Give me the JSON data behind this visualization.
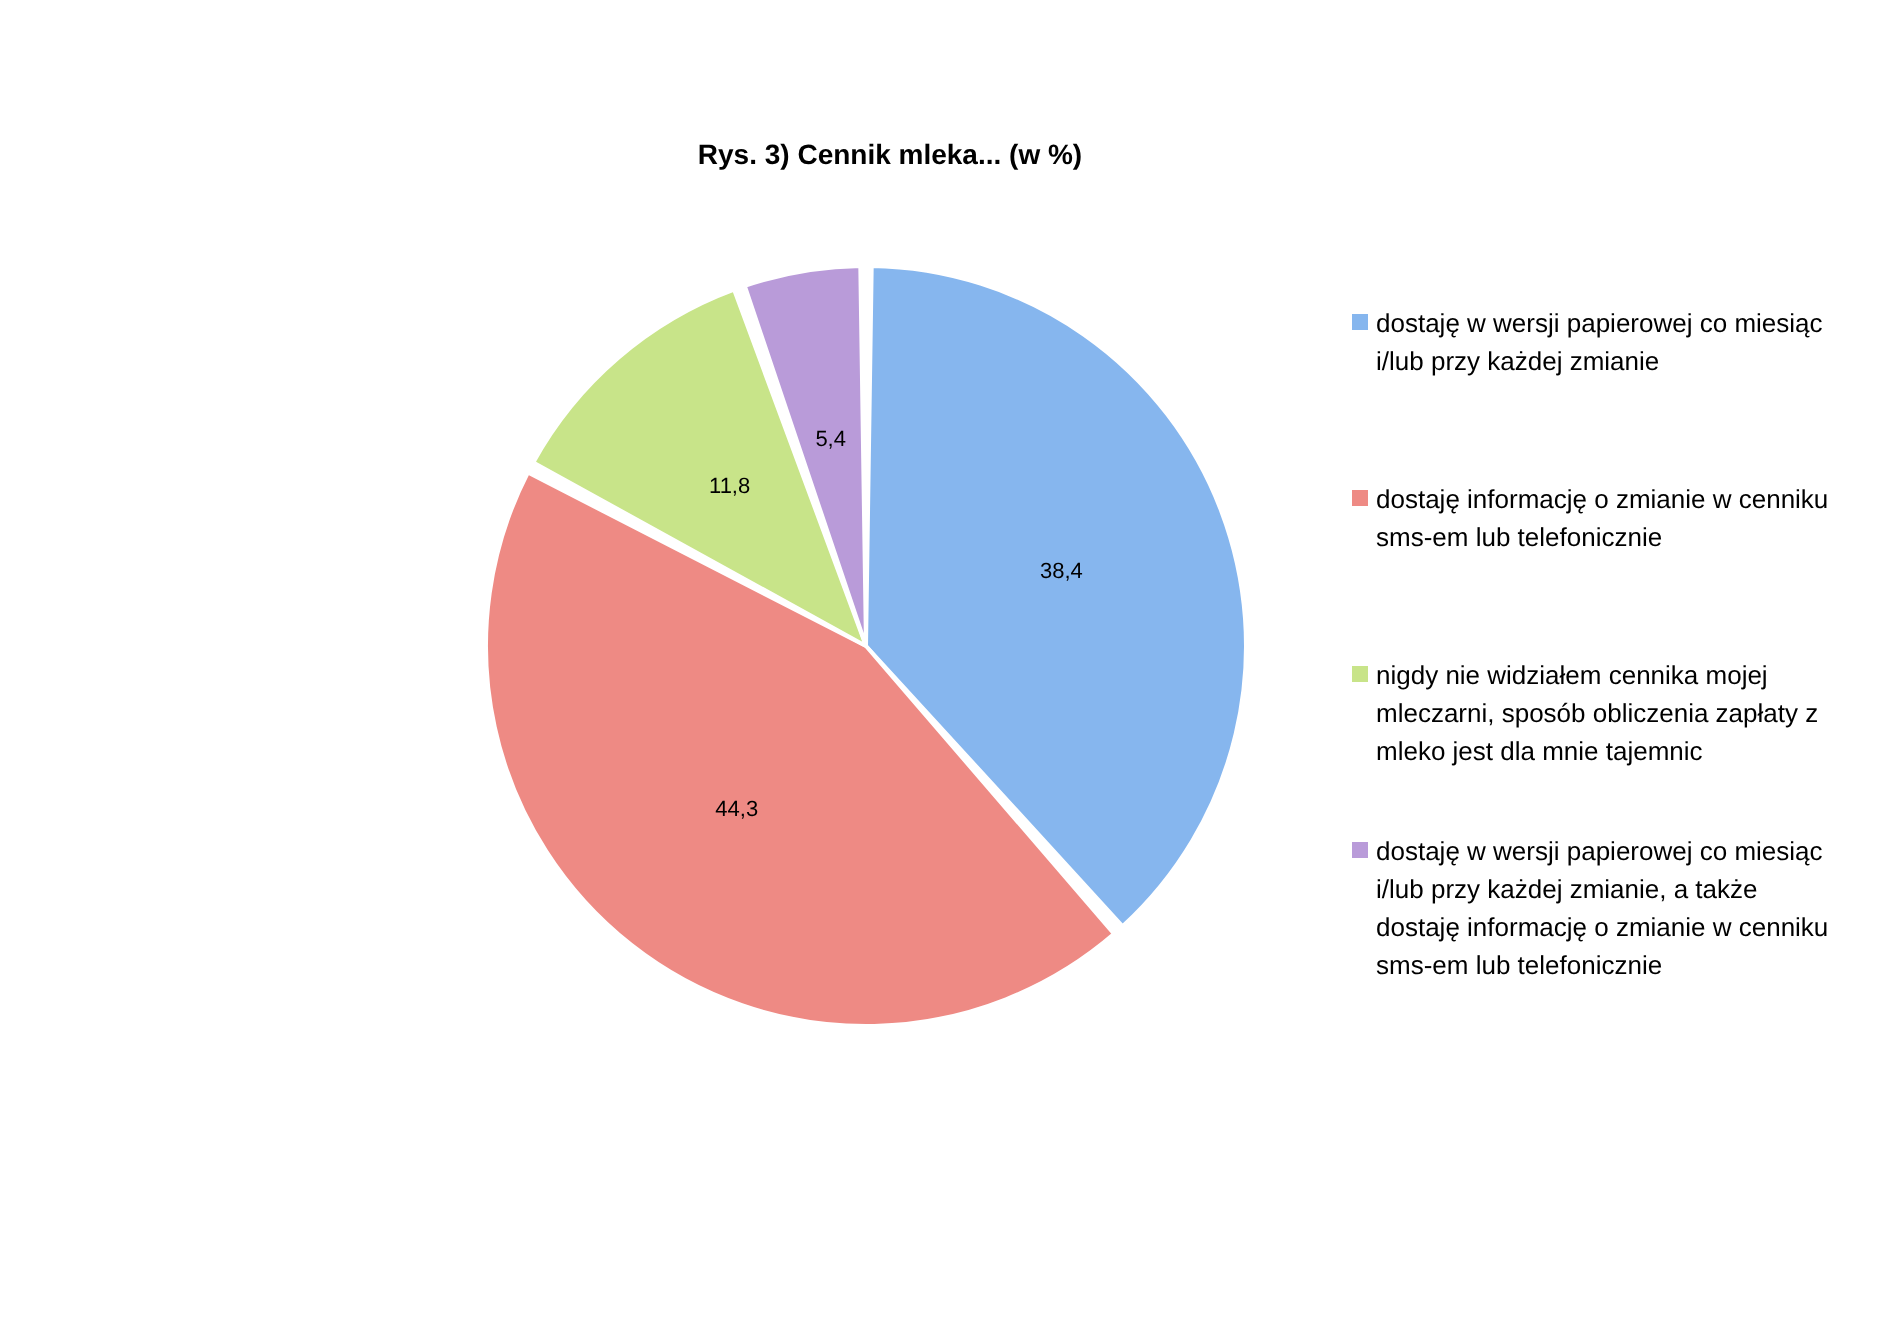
{
  "chart_data": {
    "type": "pie",
    "title": "Rys. 3) Cennik mleka... (w %)",
    "categories": [
      "dostaję w wersji papierowej co miesiąc i/lub przy każdej zmianie",
      "dostaję informację o zmianie w cenniku sms-em lub telefonicznie",
      "nigdy nie widziałem cennika mojej mleczarni, sposób obliczenia zapłaty z mleko jest dla mnie tajemnic",
      "dostaję w wersji papierowej co miesiąc i/lub przy każdej zmianie, a także dostaję informację o zmianie w cenniku sms-em lub telefonicznie"
    ],
    "values": [
      38.4,
      44.3,
      11.8,
      5.4
    ],
    "colors": [
      "#86b6ee",
      "#ee8a84",
      "#c8e489",
      "#b99bd9"
    ],
    "value_labels": [
      "38,4",
      "44,3",
      "11,8",
      "5,4"
    ],
    "legend": "right"
  }
}
